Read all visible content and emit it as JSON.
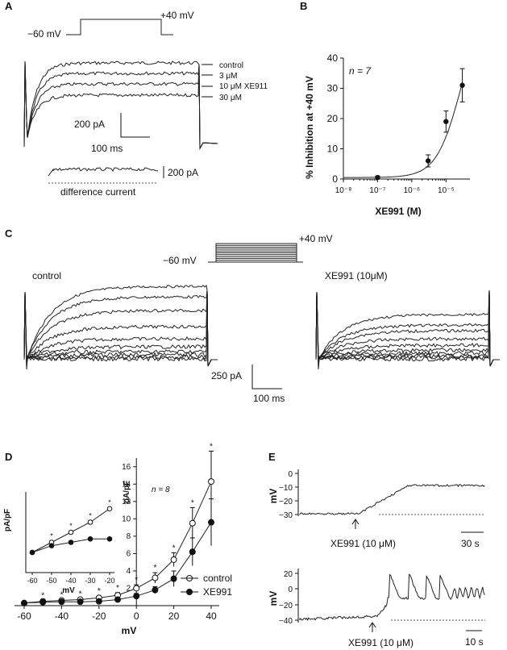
{
  "panels": {
    "A": {
      "letter": "A",
      "protocol": {
        "hold": "−60 mV",
        "step": "+40 mV"
      },
      "legend": [
        "control",
        "3 μM",
        "10 μM XE911",
        "30 μM"
      ],
      "scale_current": "200 pA",
      "scale_time": "100 ms",
      "diff_scale": "200 pA",
      "diff_label": "difference current"
    },
    "B": {
      "letter": "B",
      "n_label": "n = 7"
    },
    "C": {
      "letter": "C",
      "protocol": {
        "hold": "−60 mV",
        "step": "+40 mV"
      },
      "left_label": "control",
      "right_label": "XE991 (10μM)",
      "scale_current": "250 pA",
      "scale_time": "100 ms"
    },
    "D": {
      "letter": "D",
      "n_label": "n = 8"
    },
    "E": {
      "letter": "E",
      "top": {
        "ylabel": "mV",
        "yticks": [
          "0",
          "−10",
          "−20",
          "−30"
        ],
        "arrow_label": "XE991 (10 μM)",
        "scale": "30 s"
      },
      "bottom": {
        "ylabel": "mV",
        "yticks": [
          "20",
          "0",
          "−20",
          "−40"
        ],
        "arrow_label": "XE991 (10 μM)",
        "scale": "10 s"
      }
    }
  },
  "chart_data": [
    {
      "panel": "B",
      "type": "scatter",
      "xlabel": "XE991 (M)",
      "ylabel": "% Inhibition at +40 mV",
      "x_scale": "log",
      "xlim": [
        1e-08,
        5e-05
      ],
      "ylim": [
        0,
        40
      ],
      "yticks": [
        0,
        10,
        20,
        30,
        40
      ],
      "xtick_labels": [
        "10⁻⁸",
        "10⁻⁷",
        "10⁻⁶",
        "10⁻⁵"
      ],
      "x": [
        1e-07,
        3e-06,
        1e-05,
        3e-05
      ],
      "y": [
        0.5,
        6,
        19,
        31
      ],
      "err": [
        0.5,
        2,
        3.5,
        5.5
      ],
      "fit": true
    },
    {
      "panel": "D",
      "type": "line",
      "xlabel": "mV",
      "ylabel": "pA/pF",
      "xlim": [
        -60,
        40
      ],
      "ylim": [
        0,
        17
      ],
      "xticks": [
        -60,
        -40,
        -20,
        0,
        20,
        40
      ],
      "yticks": [
        0,
        2,
        4,
        6,
        8,
        10,
        12,
        14,
        16
      ],
      "x": [
        -60,
        -50,
        -40,
        -30,
        -20,
        -10,
        0,
        10,
        20,
        30,
        40
      ],
      "series": [
        {
          "name": "control",
          "values": [
            0.3,
            0.5,
            0.6,
            0.7,
            0.9,
            1.2,
            2.0,
            3.2,
            5.3,
            9.5,
            14.3
          ],
          "err": [
            0.1,
            0.1,
            0.1,
            0.1,
            0.2,
            0.3,
            0.4,
            0.6,
            0.8,
            1.8,
            3.5
          ]
        },
        {
          "name": "XE991",
          "values": [
            0.3,
            0.4,
            0.45,
            0.45,
            0.5,
            0.7,
            1.1,
            1.8,
            3.1,
            6.2,
            9.6
          ],
          "err": [
            0.1,
            0.1,
            0.1,
            0.1,
            0.1,
            0.2,
            0.3,
            0.4,
            0.9,
            1.6,
            2.7
          ]
        }
      ],
      "significance": [
        "*",
        "*",
        "*",
        "*",
        "*",
        "*",
        "*",
        "*",
        "*",
        "*"
      ],
      "inset": {
        "xlabel": "mV",
        "ylabel": "pA/pF",
        "xticks": [
          -60,
          -50,
          -40,
          -30,
          -20
        ],
        "x": [
          -60,
          -50,
          -40,
          -30,
          -20
        ],
        "control": [
          0.3,
          0.45,
          0.6,
          0.75,
          0.95
        ],
        "xe991": [
          0.3,
          0.4,
          0.45,
          0.5,
          0.5
        ]
      }
    }
  ]
}
